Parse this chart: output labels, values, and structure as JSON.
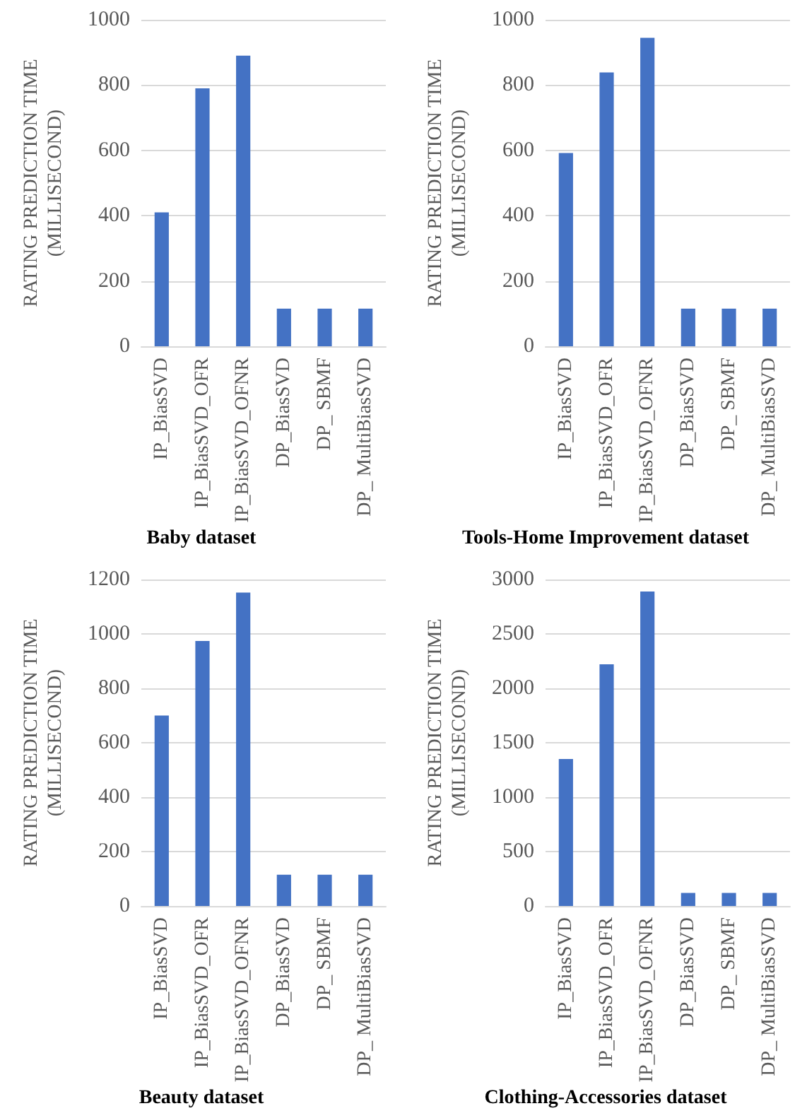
{
  "chart_data": [
    {
      "type": "bar",
      "title": "Baby dataset",
      "ylabel": "RATING PREDICTION TIME (MILLISECOND)",
      "categories": [
        "IP_BiasSVD",
        "IP_BiasSVD_OFR",
        "IP_BiasSVD_OFNR",
        "DP_BiasSVD",
        "DP_ SBMF",
        "DP_ MultiBiasSVD"
      ],
      "values": [
        410,
        790,
        890,
        115,
        115,
        115
      ],
      "color": "#4472c4",
      "ylim": [
        0,
        1000
      ],
      "yticks": [
        0,
        200,
        400,
        600,
        800,
        1000
      ],
      "grid": "y"
    },
    {
      "type": "bar",
      "title": "Tools-Home Improvement dataset",
      "ylabel": "RATING PREDICTION TIME (MILLISECOND)",
      "categories": [
        "IP_BiasSVD",
        "IP_BiasSVD_OFR",
        "IP_BiasSVD_OFNR",
        "DP_BiasSVD",
        "DP_ SBMF",
        "DP_ MultiBiasSVD"
      ],
      "values": [
        592,
        839,
        945,
        115,
        115,
        115
      ],
      "color": "#4472c4",
      "ylim": [
        0,
        1000
      ],
      "yticks": [
        0,
        200,
        400,
        600,
        800,
        1000
      ],
      "grid": "y"
    },
    {
      "type": "bar",
      "title": "Beauty dataset",
      "ylabel": "RATING PREDICTION TIME (MILLISECOND)",
      "categories": [
        "IP_BiasSVD",
        "IP_BiasSVD_OFR",
        "IP_BiasSVD_OFNR",
        "DP_BiasSVD",
        "DP_ SBMF",
        "DP_ MultiBiasSVD"
      ],
      "values": [
        700,
        974,
        1152,
        115,
        115,
        115
      ],
      "color": "#4472c4",
      "ylim": [
        0,
        1200
      ],
      "yticks": [
        0,
        200,
        400,
        600,
        800,
        1000,
        1200
      ],
      "grid": "y"
    },
    {
      "type": "bar",
      "title": "Clothing-Accessories dataset",
      "ylabel": "RATING PREDICTION TIME (MILLISECOND)",
      "categories": [
        "IP_BiasSVD",
        "IP_BiasSVD_OFR",
        "IP_BiasSVD_OFNR",
        "DP_BiasSVD",
        "DP_ SBMF",
        "DP_ MultiBiasSVD"
      ],
      "values": [
        1350,
        2220,
        2890,
        120,
        120,
        120
      ],
      "color": "#4472c4",
      "ylim": [
        0,
        3000
      ],
      "yticks": [
        0,
        500,
        1000,
        1500,
        2000,
        2500,
        3000
      ],
      "grid": "y"
    }
  ]
}
